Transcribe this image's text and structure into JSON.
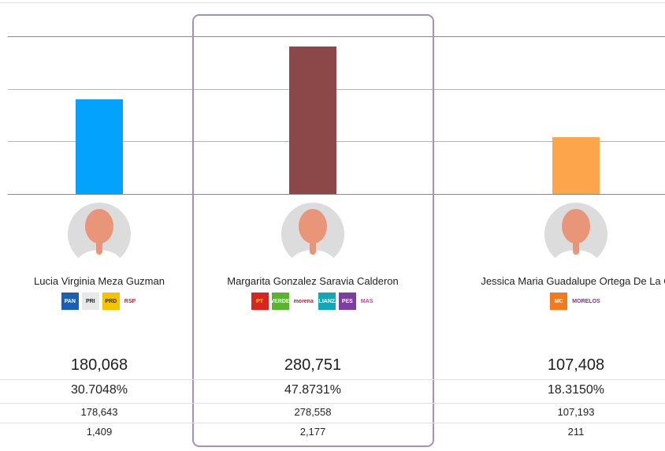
{
  "chart_data": {
    "type": "bar",
    "title": "",
    "xlabel": "",
    "ylabel": "",
    "ylim": [
      0,
      300000
    ],
    "gridlines": [
      0,
      100000,
      200000,
      300000
    ],
    "grid": true,
    "categories": [
      "Lucia Virginia Meza Guzman",
      "Margarita Gonzalez Saravia Calderon",
      "Jessica Maria Guadalupe Ortega De La C"
    ],
    "values": [
      180068,
      280751,
      107408
    ],
    "colors": [
      "#03a2fd",
      "#8c4848",
      "#fda54a"
    ],
    "highlighted_index": 1
  },
  "candidates": [
    {
      "name": "Lucia Virginia Meza Guzman",
      "votes": "180,068",
      "percent": "30.7048%",
      "votes_row3": "178,643",
      "votes_row4": "1,409",
      "parties": [
        {
          "label": "PAN",
          "bg": "#1a5fb4",
          "fg": "#fff"
        },
        {
          "label": "PRI",
          "bg": "#e8e8e8",
          "fg": "#222"
        },
        {
          "label": "PRD",
          "bg": "#f5c400",
          "fg": "#222"
        },
        {
          "label": "RSP",
          "bg": "#ffffff",
          "fg": "#d21f2b"
        }
      ]
    },
    {
      "name": "Margarita Gonzalez Saravia Calderon",
      "votes": "280,751",
      "percent": "47.8731%",
      "votes_row3": "278,558",
      "votes_row4": "2,177",
      "parties": [
        {
          "label": "PT",
          "bg": "#d7261e",
          "fg": "#ffe100"
        },
        {
          "label": "VERDE",
          "bg": "#5bb431",
          "fg": "#fff"
        },
        {
          "label": "morena",
          "bg": "#ffffff",
          "fg": "#a3243b"
        },
        {
          "label": "ALIANZA",
          "bg": "#14a6b4",
          "fg": "#fff"
        },
        {
          "label": "PES",
          "bg": "#7b3fa0",
          "fg": "#fff"
        },
        {
          "label": "MAS",
          "bg": "#ffffff",
          "fg": "#e0338f"
        }
      ]
    },
    {
      "name": "Jessica Maria Guadalupe Ortega De La C",
      "votes": "107,408",
      "percent": "18.3150%",
      "votes_row3": "107,193",
      "votes_row4": "211",
      "parties": [
        {
          "label": "MC",
          "bg": "#f07a1c",
          "fg": "#fff"
        },
        {
          "label": "MORELOS",
          "bg": "#ffffff",
          "fg": "#8d2c8d"
        }
      ]
    }
  ]
}
